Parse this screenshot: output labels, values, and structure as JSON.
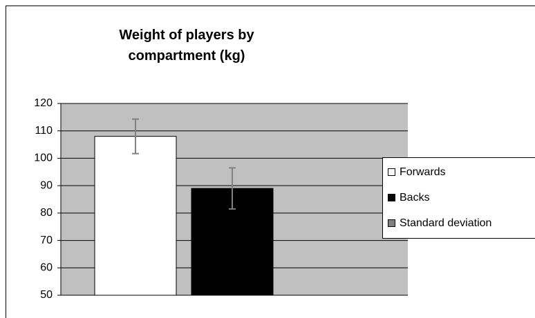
{
  "chart_data": {
    "type": "bar",
    "title": "Weight of players by compartment (kg)",
    "series": [
      {
        "name": "Forwards",
        "color": "#ffffff",
        "values": [
          108
        ],
        "errors": [
          6.3
        ]
      },
      {
        "name": "Backs",
        "color": "#000000",
        "values": [
          89
        ],
        "errors": [
          7.5
        ]
      }
    ],
    "error_bar_name": "Standard deviation",
    "error_color": "#808080",
    "ylim": [
      50,
      120
    ],
    "yticks": [
      50,
      60,
      70,
      80,
      90,
      100,
      110,
      120
    ],
    "grid": true
  }
}
